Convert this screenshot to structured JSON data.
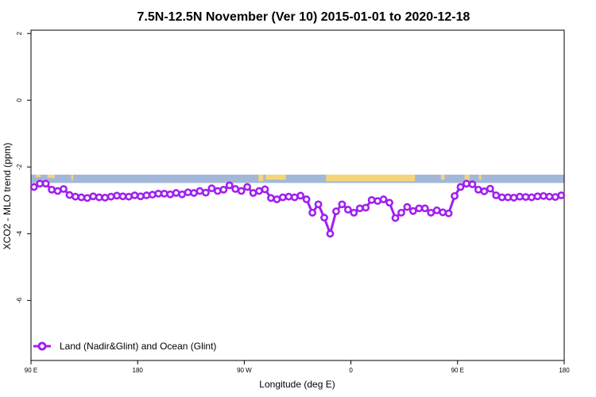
{
  "chart_data": {
    "type": "line",
    "title": "7.5N-12.5N November (Ver 10)   2015-01-01 to 2020-12-18",
    "xlabel": "Longitude (deg E)",
    "ylabel": "XCO2 - MLO trend (ppm)",
    "x_ticks": [
      {
        "value": 90,
        "label": "90 E"
      },
      {
        "value": 180,
        "label": "180"
      },
      {
        "value": 270,
        "label": "90 W"
      },
      {
        "value": 360,
        "label": "0"
      },
      {
        "value": 450,
        "label": "90 E"
      },
      {
        "value": 540,
        "label": "180"
      }
    ],
    "y_ticks": [
      {
        "value": 2,
        "label": "2"
      },
      {
        "value": 0,
        "label": "0"
      },
      {
        "value": -2,
        "label": "-2"
      },
      {
        "value": -4,
        "label": "-4"
      },
      {
        "value": -6,
        "label": "-6"
      }
    ],
    "xlim": [
      90,
      540
    ],
    "ylim": [
      -7.8,
      2.1
    ],
    "colors": {
      "series": "#a020f0",
      "ocean_band": "#a3b8d8",
      "land_band": "#f5d57a"
    },
    "map_band": {
      "y_top": -2.23,
      "y_bottom": -2.48
    },
    "series": [
      {
        "name": "Land (Nadir&Glint) and Ocean (Glint)",
        "x": [
          92.5,
          97.5,
          102.5,
          107.5,
          112.5,
          117.5,
          122.5,
          127.5,
          132.5,
          137.5,
          142.5,
          147.5,
          152.5,
          157.5,
          162.5,
          167.5,
          172.5,
          177.5,
          182.5,
          187.5,
          192.5,
          197.5,
          202.5,
          207.5,
          212.5,
          217.5,
          222.5,
          227.5,
          232.5,
          237.5,
          242.5,
          247.5,
          252.5,
          257.5,
          262.5,
          267.5,
          272.5,
          277.5,
          282.5,
          287.5,
          292.5,
          297.5,
          302.5,
          307.5,
          312.5,
          317.5,
          322.5,
          327.5,
          332.5,
          337.5,
          342.5,
          347.5,
          352.5,
          357.5,
          362.5,
          367.5,
          372.5,
          377.5,
          382.5,
          387.5,
          392.5,
          397.5,
          402.5,
          407.5,
          412.5,
          417.5,
          422.5,
          427.5,
          432.5,
          437.5,
          442.5,
          447.5,
          452.5,
          457.5,
          462.5,
          467.5,
          472.5,
          477.5,
          482.5,
          487.5,
          492.5,
          497.5,
          502.5,
          507.5,
          512.5,
          517.5,
          522.5,
          527.5,
          532.5,
          537.5
        ],
        "values": [
          -2.6,
          -2.5,
          -2.5,
          -2.68,
          -2.72,
          -2.66,
          -2.84,
          -2.89,
          -2.91,
          -2.93,
          -2.88,
          -2.91,
          -2.92,
          -2.89,
          -2.86,
          -2.88,
          -2.89,
          -2.85,
          -2.88,
          -2.85,
          -2.83,
          -2.8,
          -2.8,
          -2.82,
          -2.78,
          -2.82,
          -2.76,
          -2.78,
          -2.72,
          -2.77,
          -2.64,
          -2.72,
          -2.68,
          -2.55,
          -2.66,
          -2.72,
          -2.6,
          -2.78,
          -2.72,
          -2.67,
          -2.93,
          -2.97,
          -2.91,
          -2.89,
          -2.91,
          -2.86,
          -2.97,
          -3.37,
          -3.12,
          -3.52,
          -4.0,
          -3.33,
          -3.12,
          -3.28,
          -3.37,
          -3.24,
          -3.22,
          -2.99,
          -3.02,
          -2.97,
          -3.07,
          -3.53,
          -3.37,
          -3.2,
          -3.32,
          -3.24,
          -3.24,
          -3.37,
          -3.3,
          -3.36,
          -3.39,
          -2.87,
          -2.6,
          -2.5,
          -2.52,
          -2.68,
          -2.73,
          -2.65,
          -2.85,
          -2.91,
          -2.91,
          -2.92,
          -2.89,
          -2.9,
          -2.91,
          -2.88,
          -2.87,
          -2.89,
          -2.9,
          -2.85
        ]
      }
    ],
    "legend_position": "bottom-left"
  }
}
